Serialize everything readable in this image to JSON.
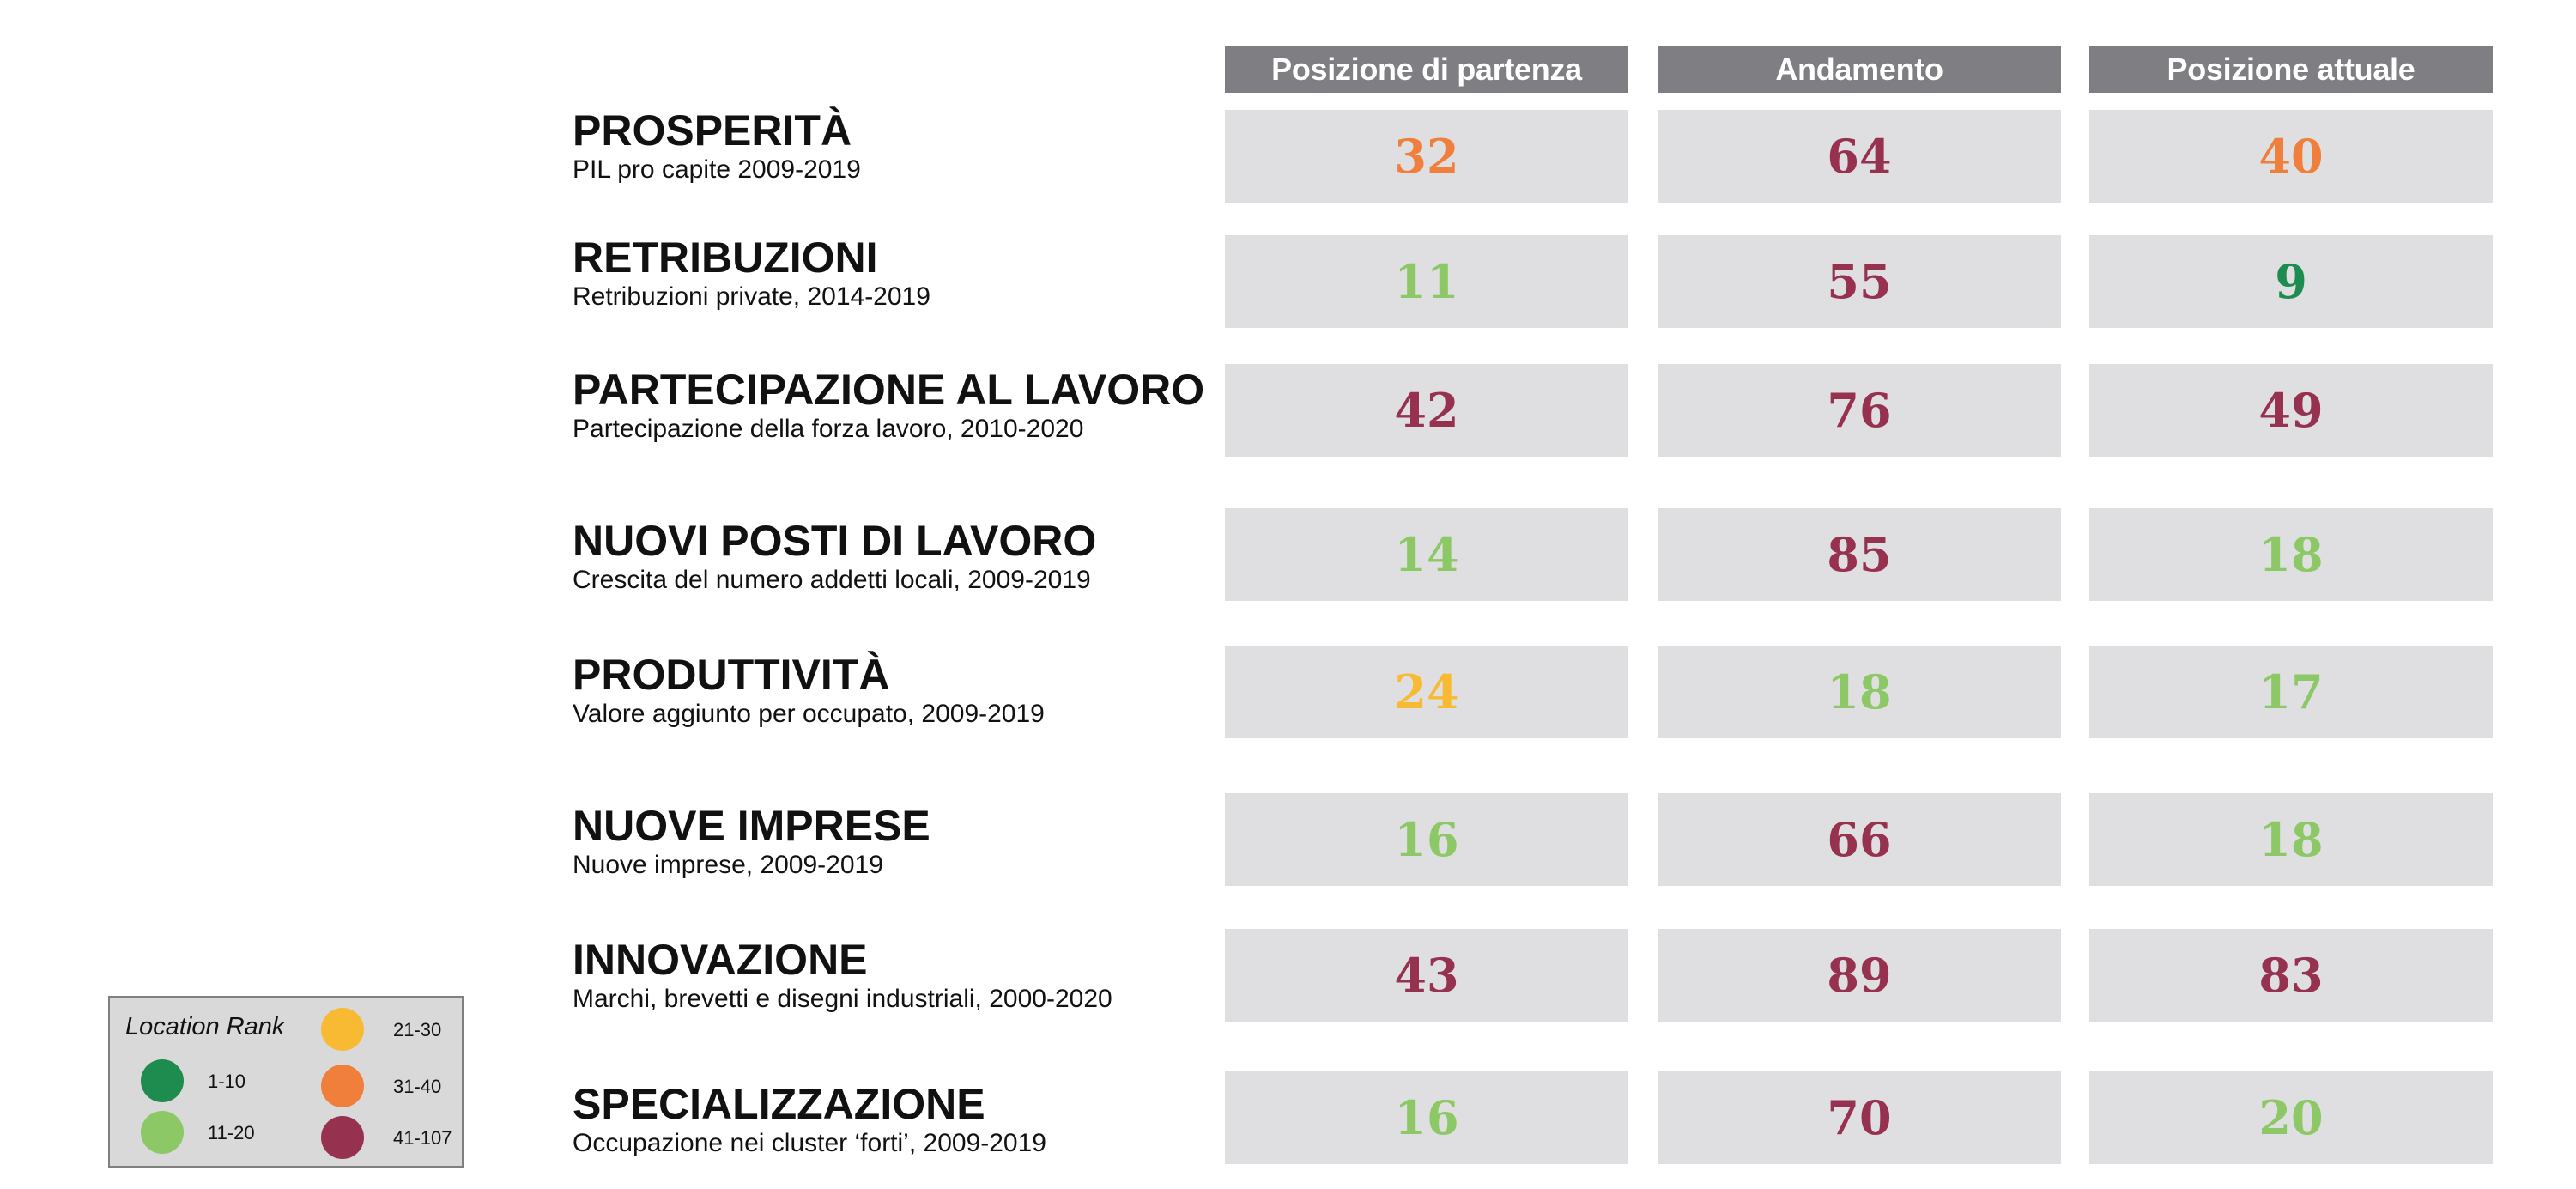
{
  "colors": {
    "rank_1_10": "#1e8c4e",
    "rank_11_20": "#8cc865",
    "rank_21_30": "#f8ba33",
    "rank_31_40": "#ef7f3b",
    "rank_41_107": "#96314f",
    "header_bg": "#7f7f83",
    "cell_bg": "#dfdfe1"
  },
  "chart_data": {
    "type": "table",
    "columns": [
      "Posizione di partenza",
      "Andamento",
      "Posizione attuale"
    ],
    "rows": [
      {
        "title": "PROSPERITÀ",
        "subtitle": "PIL pro capite 2009-2019",
        "values": [
          32,
          64,
          40
        ]
      },
      {
        "title": "RETRIBUZIONI",
        "subtitle": "Retribuzioni private, 2014-2019",
        "values": [
          11,
          55,
          9
        ]
      },
      {
        "title": "PARTECIPAZIONE AL LAVORO",
        "subtitle": "Partecipazione della forza lavoro, 2010-2020",
        "values": [
          42,
          76,
          49
        ]
      },
      {
        "title": "NUOVI POSTI DI LAVORO",
        "subtitle": "Crescita del numero addetti locali, 2009-2019",
        "values": [
          14,
          85,
          18
        ]
      },
      {
        "title": "PRODUTTIVITÀ",
        "subtitle": "Valore aggiunto per occupato, 2009-2019",
        "values": [
          24,
          18,
          17
        ]
      },
      {
        "title": "NUOVE IMPRESE",
        "subtitle": "Nuove imprese, 2009-2019",
        "values": [
          16,
          66,
          18
        ]
      },
      {
        "title": "INNOVAZIONE",
        "subtitle": "Marchi, brevetti e disegni industriali, 2000-2020",
        "values": [
          43,
          89,
          83
        ]
      },
      {
        "title": "SPECIALIZZAZIONE",
        "subtitle": "Occupazione nei cluster ‘forti’, 2009-2019",
        "values": [
          16,
          70,
          20
        ]
      }
    ],
    "legend": {
      "title": "Location Rank",
      "items": [
        {
          "label": "1-10",
          "color": "#1e8c4e"
        },
        {
          "label": "11-20",
          "color": "#8cc865"
        },
        {
          "label": "21-30",
          "color": "#f8ba33"
        },
        {
          "label": "31-40",
          "color": "#ef7f3b"
        },
        {
          "label": "41-107",
          "color": "#96314f"
        }
      ]
    }
  }
}
